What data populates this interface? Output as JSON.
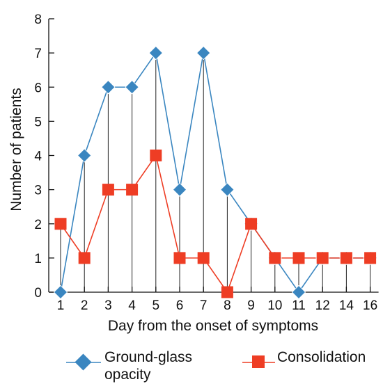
{
  "chart_data": {
    "type": "line",
    "title": "",
    "xlabel": "Day from the onset of symptoms",
    "ylabel": "Number of patients",
    "categories": [
      "1",
      "2",
      "3",
      "4",
      "5",
      "6",
      "7",
      "8",
      "9",
      "10",
      "11",
      "12",
      "14",
      "16"
    ],
    "ylim": [
      0,
      8
    ],
    "yticks": [
      0,
      1,
      2,
      3,
      4,
      5,
      6,
      7,
      8
    ],
    "grid": false,
    "legend_position": "bottom",
    "drop_lines": true,
    "series": [
      {
        "name": "Ground-glass opacity",
        "marker": "diamond",
        "color": "#3a86c0",
        "values": [
          0,
          4,
          6,
          6,
          7,
          3,
          7,
          3,
          2,
          1,
          0,
          1,
          1,
          1
        ]
      },
      {
        "name": "Consolidation",
        "marker": "square",
        "color": "#ee3d24",
        "values": [
          2,
          1,
          3,
          3,
          4,
          1,
          1,
          0,
          2,
          1,
          1,
          1,
          1,
          1
        ]
      }
    ]
  },
  "legend": {
    "series1_line1": "Ground-glass",
    "series1_line2": "opacity",
    "series2_label": "Consolidation"
  }
}
